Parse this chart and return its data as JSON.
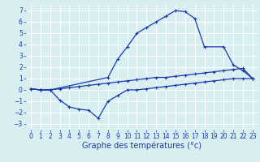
{
  "xlabel": "Graphe des températures (°c)",
  "background_color": "#d8eef0",
  "grid_color": "#b8d8dc",
  "line_color": "#1a3aad",
  "xlim": [
    -0.5,
    23.5
  ],
  "ylim": [
    -3.5,
    7.5
  ],
  "xticks": [
    0,
    1,
    2,
    3,
    4,
    5,
    6,
    7,
    8,
    9,
    10,
    11,
    12,
    13,
    14,
    15,
    16,
    17,
    18,
    19,
    20,
    21,
    22,
    23
  ],
  "yticks": [
    -3,
    -2,
    -1,
    0,
    1,
    2,
    3,
    4,
    5,
    6,
    7
  ],
  "line1_x": [
    0,
    1,
    2,
    8,
    9,
    10,
    11,
    12,
    13,
    14,
    15,
    16,
    17,
    18,
    20,
    21,
    22,
    23
  ],
  "line1_y": [
    0.1,
    0.0,
    0.0,
    1.1,
    2.7,
    3.8,
    5.0,
    5.5,
    6.0,
    6.5,
    7.0,
    6.9,
    6.3,
    3.8,
    3.8,
    2.2,
    1.7,
    1.0
  ],
  "line2_x": [
    0,
    1,
    2,
    3,
    4,
    5,
    6,
    7,
    8,
    9,
    10,
    11,
    12,
    13,
    14,
    15,
    16,
    17,
    18,
    19,
    20,
    21,
    22,
    23
  ],
  "line2_y": [
    0.1,
    0.0,
    0.0,
    0.1,
    0.2,
    0.3,
    0.4,
    0.5,
    0.6,
    0.7,
    0.8,
    0.9,
    1.0,
    1.1,
    1.1,
    1.2,
    1.3,
    1.4,
    1.5,
    1.6,
    1.7,
    1.8,
    1.9,
    1.0
  ],
  "line3_x": [
    0,
    1,
    2,
    3,
    4,
    5,
    6,
    7,
    8,
    9,
    10,
    11,
    12,
    13,
    14,
    15,
    16,
    17,
    18,
    19,
    20,
    21,
    22,
    23
  ],
  "line3_y": [
    0.1,
    0.0,
    0.0,
    -0.9,
    -1.5,
    -1.7,
    -1.8,
    -2.5,
    -1.0,
    -0.5,
    0.0,
    0.0,
    0.1,
    0.2,
    0.3,
    0.4,
    0.5,
    0.6,
    0.7,
    0.8,
    0.9,
    1.0,
    1.0,
    1.0
  ],
  "tick_fontsize": 5.5,
  "label_fontsize": 7
}
